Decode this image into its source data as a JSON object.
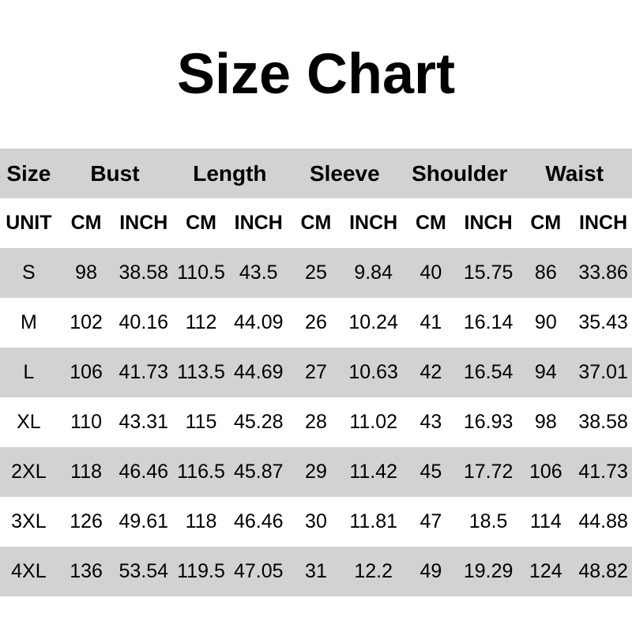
{
  "title": "Size Chart",
  "colors": {
    "row_shade": "#d2d2d2",
    "row_plain": "#ffffff",
    "text": "#000000"
  },
  "table": {
    "group_headers": [
      {
        "label": "Size",
        "span": 1
      },
      {
        "label": "Bust",
        "span": 2
      },
      {
        "label": "Length",
        "span": 2
      },
      {
        "label": "Sleeve",
        "span": 2
      },
      {
        "label": "Shoulder",
        "span": 2
      },
      {
        "label": "Waist",
        "span": 2
      }
    ],
    "unit_row": [
      "UNIT",
      "CM",
      "INCH",
      "CM",
      "INCH",
      "CM",
      "INCH",
      "CM",
      "INCH",
      "CM",
      "INCH"
    ],
    "rows": [
      {
        "size": "S",
        "values": [
          "98",
          "38.58",
          "110.5",
          "43.5",
          "25",
          "9.84",
          "40",
          "15.75",
          "86",
          "33.86"
        ]
      },
      {
        "size": "M",
        "values": [
          "102",
          "40.16",
          "112",
          "44.09",
          "26",
          "10.24",
          "41",
          "16.14",
          "90",
          "35.43"
        ]
      },
      {
        "size": "L",
        "values": [
          "106",
          "41.73",
          "113.5",
          "44.69",
          "27",
          "10.63",
          "42",
          "16.54",
          "94",
          "37.01"
        ]
      },
      {
        "size": "XL",
        "values": [
          "110",
          "43.31",
          "115",
          "45.28",
          "28",
          "11.02",
          "43",
          "16.93",
          "98",
          "38.58"
        ]
      },
      {
        "size": "2XL",
        "values": [
          "118",
          "46.46",
          "116.5",
          "45.87",
          "29",
          "11.42",
          "45",
          "17.72",
          "106",
          "41.73"
        ]
      },
      {
        "size": "3XL",
        "values": [
          "126",
          "49.61",
          "118",
          "46.46",
          "30",
          "11.81",
          "47",
          "18.5",
          "114",
          "44.88"
        ]
      },
      {
        "size": "4XL",
        "values": [
          "136",
          "53.54",
          "119.5",
          "47.05",
          "31",
          "12.2",
          "49",
          "19.29",
          "124",
          "48.82"
        ]
      }
    ]
  }
}
